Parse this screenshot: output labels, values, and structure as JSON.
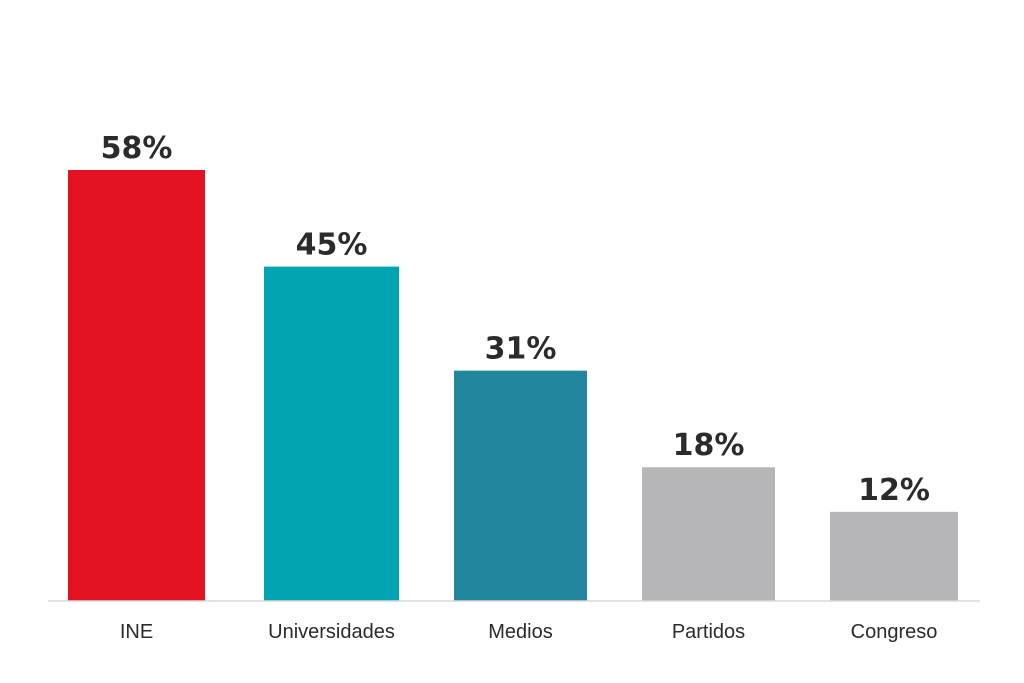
{
  "chart_data": {
    "type": "bar",
    "title": "",
    "xlabel": "",
    "ylabel": "",
    "ylim": [
      0,
      58
    ],
    "grid": false,
    "categories": [
      "INE",
      "Universidades",
      "Medios",
      "Partidos",
      "Congreso"
    ],
    "values": [
      58,
      45,
      31,
      18,
      12
    ],
    "value_labels": [
      "58%",
      "45%",
      "31%",
      "18%",
      "12%"
    ],
    "colors": [
      "#e31221",
      "#02a4b4",
      "#23869f",
      "#b6b6b8",
      "#b6b6b8"
    ]
  }
}
